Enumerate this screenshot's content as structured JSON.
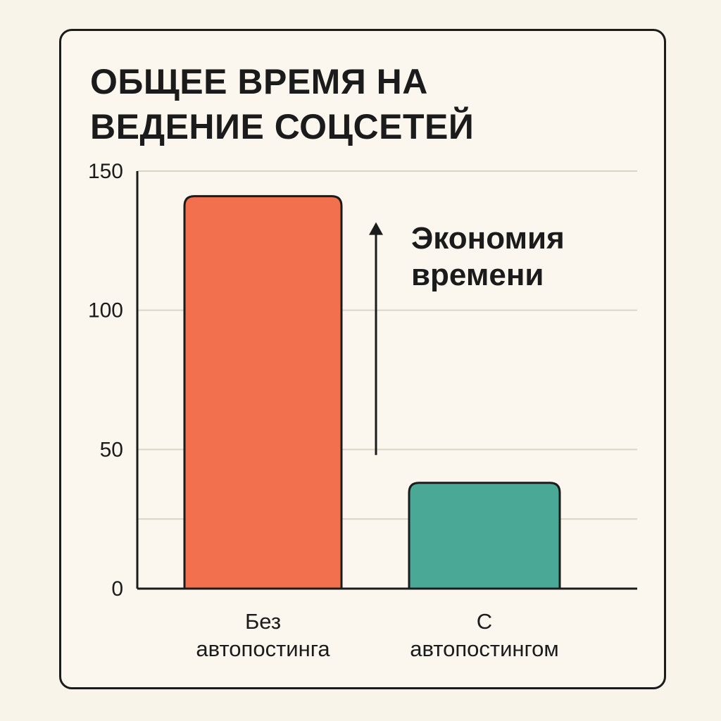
{
  "chart_data": {
    "type": "bar",
    "title_lines": [
      "ОБЩЕЕ ВРЕМЯ НА",
      "ВЕДЕНИЕ СОЦСЕТЕЙ"
    ],
    "categories": [
      [
        "Без",
        "автопостинга"
      ],
      [
        "С",
        "автопостингом"
      ]
    ],
    "values": [
      141,
      38
    ],
    "bar_colors": [
      "#f2704e",
      "#4aa897"
    ],
    "ylim": [
      0,
      150
    ],
    "y_ticks": [
      0,
      50,
      100,
      150
    ],
    "grid": true,
    "xlabel": "",
    "ylabel": "",
    "annotation": {
      "lines": [
        "Экономия",
        "времени"
      ],
      "arrow_from_value": 48,
      "arrow_to_value": 141
    },
    "colors": {
      "axis": "#1b1b1b",
      "grid": "#d9d6c8",
      "background": "#fbf7ee"
    }
  }
}
